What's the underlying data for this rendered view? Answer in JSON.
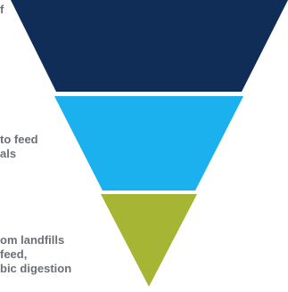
{
  "colors": {
    "tier_top": "#0f2d57",
    "tier_middle": "#1ab1ee",
    "tier_bottom": "#a6b533",
    "label_text": "#6b6f78"
  },
  "labels": {
    "top": [
      "f"
    ],
    "middle": [
      "to feed",
      "als"
    ],
    "bottom": [
      "om landfills",
      "feed,",
      "bic digestion"
    ]
  }
}
